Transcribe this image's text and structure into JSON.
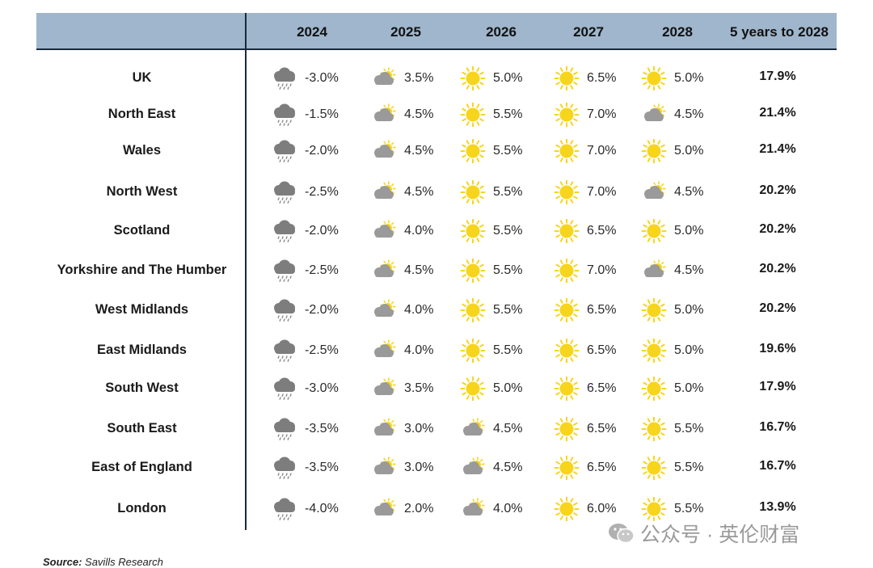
{
  "chart_data": {
    "type": "table",
    "columns": [
      "2024",
      "2025",
      "2026",
      "2027",
      "2028",
      "5 years to 2028"
    ],
    "rows": [
      {
        "region": "UK",
        "values": [
          "-3.0%",
          "3.5%",
          "5.0%",
          "6.5%",
          "5.0%"
        ],
        "icons": [
          "rain",
          "cloud",
          "sun",
          "sun",
          "sun"
        ],
        "total": "17.9%"
      },
      {
        "region": "North East",
        "values": [
          "-1.5%",
          "4.5%",
          "5.5%",
          "7.0%",
          "4.5%"
        ],
        "icons": [
          "rain",
          "cloud",
          "sun",
          "sun",
          "cloud"
        ],
        "total": "21.4%"
      },
      {
        "region": "Wales",
        "values": [
          "-2.0%",
          "4.5%",
          "5.5%",
          "7.0%",
          "5.0%"
        ],
        "icons": [
          "rain",
          "cloud",
          "sun",
          "sun",
          "sun"
        ],
        "total": "21.4%"
      },
      {
        "region": "North West",
        "values": [
          "-2.5%",
          "4.5%",
          "5.5%",
          "7.0%",
          "4.5%"
        ],
        "icons": [
          "rain",
          "cloud",
          "sun",
          "sun",
          "cloud"
        ],
        "total": "20.2%"
      },
      {
        "region": "Scotland",
        "values": [
          "-2.0%",
          "4.0%",
          "5.5%",
          "6.5%",
          "5.0%"
        ],
        "icons": [
          "rain",
          "cloud",
          "sun",
          "sun",
          "sun"
        ],
        "total": "20.2%"
      },
      {
        "region": "Yorkshire and The Humber",
        "values": [
          "-2.5%",
          "4.5%",
          "5.5%",
          "7.0%",
          "4.5%"
        ],
        "icons": [
          "rain",
          "cloud",
          "sun",
          "sun",
          "cloud"
        ],
        "total": "20.2%"
      },
      {
        "region": "West Midlands",
        "values": [
          "-2.0%",
          "4.0%",
          "5.5%",
          "6.5%",
          "5.0%"
        ],
        "icons": [
          "rain",
          "cloud",
          "sun",
          "sun",
          "sun"
        ],
        "total": "20.2%"
      },
      {
        "region": "East Midlands",
        "values": [
          "-2.5%",
          "4.0%",
          "5.5%",
          "6.5%",
          "5.0%"
        ],
        "icons": [
          "rain",
          "cloud",
          "sun",
          "sun",
          "sun"
        ],
        "total": "19.6%"
      },
      {
        "region": "South West",
        "values": [
          "-3.0%",
          "3.5%",
          "5.0%",
          "6.5%",
          "5.0%"
        ],
        "icons": [
          "rain",
          "cloud",
          "sun",
          "sun",
          "sun"
        ],
        "total": "17.9%"
      },
      {
        "region": "South East",
        "values": [
          "-3.5%",
          "3.0%",
          "4.5%",
          "6.5%",
          "5.5%"
        ],
        "icons": [
          "rain",
          "cloud",
          "cloud",
          "sun",
          "sun"
        ],
        "total": "16.7%"
      },
      {
        "region": "East of England",
        "values": [
          "-3.5%",
          "3.0%",
          "4.5%",
          "6.5%",
          "5.5%"
        ],
        "icons": [
          "rain",
          "cloud",
          "cloud",
          "sun",
          "sun"
        ],
        "total": "16.7%"
      },
      {
        "region": "London",
        "values": [
          "-4.0%",
          "2.0%",
          "4.0%",
          "6.0%",
          "5.5%"
        ],
        "icons": [
          "rain",
          "cloud",
          "cloud",
          "sun",
          "sun"
        ],
        "total": "13.9%"
      }
    ]
  },
  "source": {
    "label": "Source:",
    "text": "Savills Research"
  },
  "watermark": {
    "text": "公众号 · 英伦财富"
  },
  "colors": {
    "header_band": "#9fb6cc",
    "sun": "#f7d51d",
    "cloud": "#9a9a9a",
    "rain_cloud": "#7d7d7d",
    "rain_drops": "#8a8a8a"
  }
}
